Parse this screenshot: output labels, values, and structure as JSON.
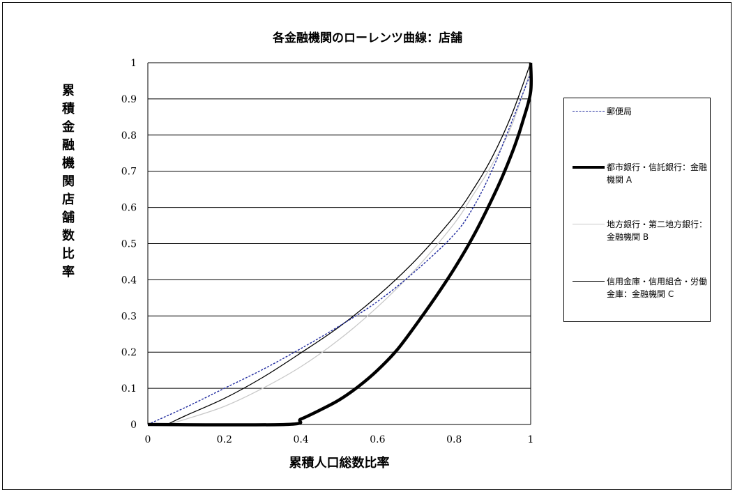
{
  "chart_data": {
    "type": "line",
    "title": "各金融機関のローレンツ曲線：店舗",
    "xlabel": "累積人口総数比率",
    "ylabel": "累積金融機関店舗数比率",
    "xlim": [
      0,
      1
    ],
    "ylim": [
      0,
      1
    ],
    "x_ticks": [
      "0",
      "0.2",
      "0.4",
      "0.6",
      "0.8",
      "1"
    ],
    "y_ticks": [
      "0",
      "0.1",
      "0.2",
      "0.3",
      "0.4",
      "0.5",
      "0.6",
      "0.7",
      "0.8",
      "0.9",
      "1"
    ],
    "grid": "horizontal",
    "legend_position": "right",
    "series": [
      {
        "name": "郵便局",
        "color": "#1f2a9e",
        "style": "dashed",
        "width": 1.4,
        "points": [
          [
            0,
            0
          ],
          [
            0.1,
            0.048
          ],
          [
            0.2,
            0.1
          ],
          [
            0.3,
            0.152
          ],
          [
            0.4,
            0.21
          ],
          [
            0.5,
            0.272
          ],
          [
            0.6,
            0.34
          ],
          [
            0.7,
            0.425
          ],
          [
            0.8,
            0.525
          ],
          [
            0.85,
            0.6
          ],
          [
            0.9,
            0.705
          ],
          [
            0.95,
            0.835
          ],
          [
            1,
            0.97
          ]
        ]
      },
      {
        "name": "都市銀行・信託銀行：金融機関 A",
        "color": "#000000",
        "style": "solid",
        "width": 4.5,
        "points": [
          [
            0,
            0
          ],
          [
            0.36,
            0
          ],
          [
            0.4,
            0.015
          ],
          [
            0.45,
            0.04
          ],
          [
            0.5,
            0.068
          ],
          [
            0.55,
            0.105
          ],
          [
            0.6,
            0.15
          ],
          [
            0.65,
            0.205
          ],
          [
            0.7,
            0.275
          ],
          [
            0.75,
            0.35
          ],
          [
            0.8,
            0.43
          ],
          [
            0.85,
            0.52
          ],
          [
            0.9,
            0.625
          ],
          [
            0.93,
            0.695
          ],
          [
            0.96,
            0.775
          ],
          [
            0.98,
            0.84
          ],
          [
            1,
            0.92
          ],
          [
            1,
            1
          ]
        ]
      },
      {
        "name": "地方銀行・第二地方銀行：金融機関 B",
        "color": "#c8c8c8",
        "style": "solid",
        "width": 1.3,
        "points": [
          [
            0.05,
            0
          ],
          [
            0.1,
            0.015
          ],
          [
            0.2,
            0.05
          ],
          [
            0.3,
            0.1
          ],
          [
            0.4,
            0.16
          ],
          [
            0.5,
            0.235
          ],
          [
            0.6,
            0.325
          ],
          [
            0.7,
            0.43
          ],
          [
            0.8,
            0.555
          ],
          [
            0.85,
            0.635
          ],
          [
            0.9,
            0.72
          ],
          [
            0.95,
            0.825
          ],
          [
            1,
            0.98
          ]
        ]
      },
      {
        "name": "信用金庫・信用組合・労働金庫：金融機関 C",
        "color": "#000000",
        "style": "solid",
        "width": 1.3,
        "points": [
          [
            0.05,
            0
          ],
          [
            0.1,
            0.025
          ],
          [
            0.2,
            0.072
          ],
          [
            0.3,
            0.13
          ],
          [
            0.4,
            0.198
          ],
          [
            0.5,
            0.27
          ],
          [
            0.6,
            0.355
          ],
          [
            0.7,
            0.455
          ],
          [
            0.8,
            0.575
          ],
          [
            0.85,
            0.65
          ],
          [
            0.9,
            0.74
          ],
          [
            0.95,
            0.855
          ],
          [
            1,
            1
          ]
        ]
      }
    ]
  },
  "legend": {
    "items": [
      {
        "label": "郵便局",
        "color": "#1f2a9e",
        "style": "dashed",
        "width": 1.4
      },
      {
        "label": "都市銀行・信託銀行：金融機関 A",
        "color": "#000000",
        "style": "solid",
        "width": 4.5
      },
      {
        "label": "地方銀行・第二地方銀行：金融機関 B",
        "color": "#c8c8c8",
        "style": "solid",
        "width": 1.3
      },
      {
        "label": "信用金庫・信用組合・労働金庫：金融機関 C",
        "color": "#000000",
        "style": "solid",
        "width": 1.3
      }
    ]
  }
}
